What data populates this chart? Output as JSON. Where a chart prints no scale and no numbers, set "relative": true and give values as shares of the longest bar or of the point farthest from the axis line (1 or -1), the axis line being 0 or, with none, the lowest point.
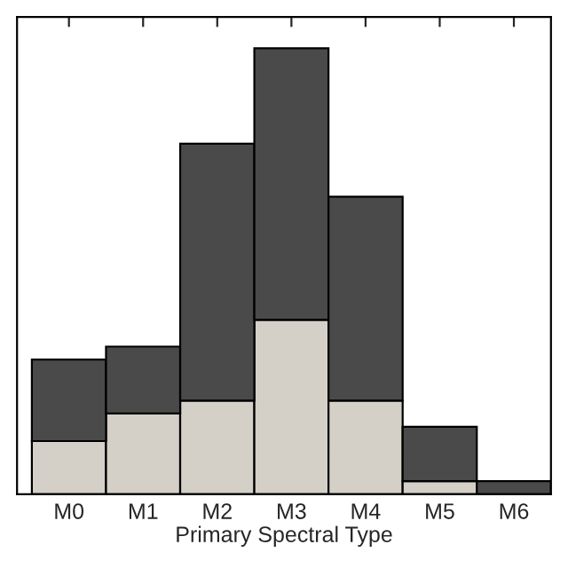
{
  "chart_data": {
    "type": "bar",
    "xlabel": "Primary Spectral Type",
    "categories": [
      "M0",
      "M1",
      "M2",
      "M3",
      "M4",
      "M5",
      "M6"
    ],
    "stacked": true,
    "relative": true,
    "tick_labels": "x",
    "series": [
      {
        "color": "#d4d0c8",
        "values": [
          0.119,
          0.181,
          0.21,
          0.391,
          0.21,
          0.029,
          0
        ]
      },
      {
        "color": "#4a4a4a",
        "values": [
          0.183,
          0.15,
          0.576,
          0.609,
          0.457,
          0.122,
          0.029
        ]
      }
    ]
  }
}
